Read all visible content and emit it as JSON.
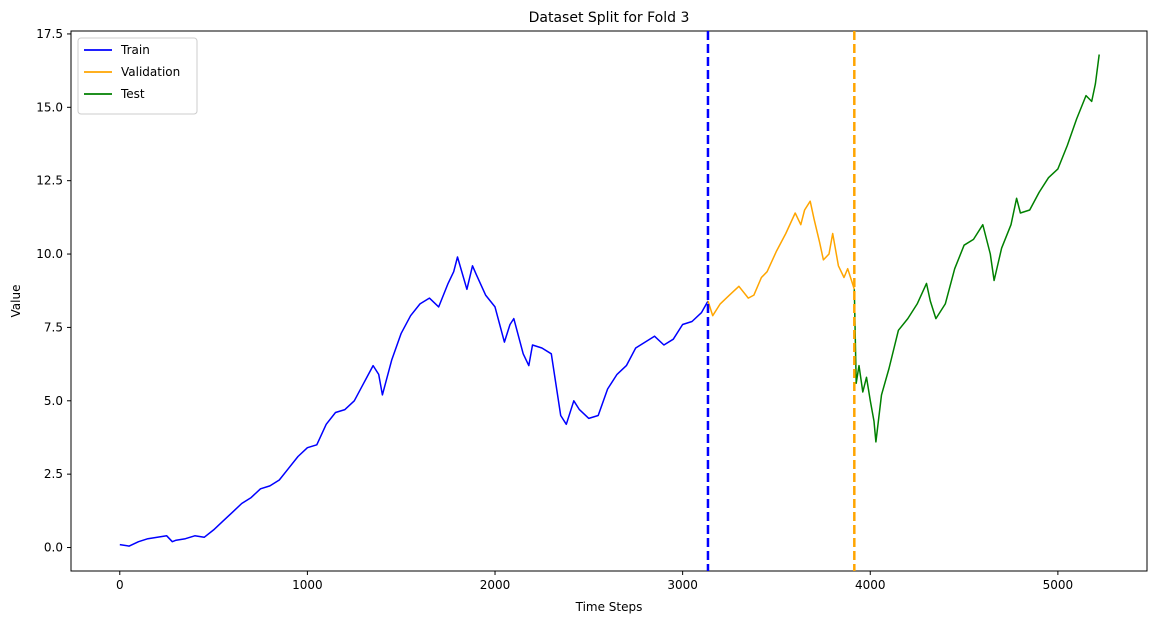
{
  "chart_data": {
    "type": "line",
    "title": "Dataset Split for Fold 3",
    "xlabel": "Time Steps",
    "ylabel": "Value",
    "xlim": [
      -260,
      5475
    ],
    "ylim": [
      -0.8,
      17.6
    ],
    "xticks": [
      0,
      1000,
      2000,
      3000,
      4000,
      5000
    ],
    "yticks": [
      0.0,
      2.5,
      5.0,
      7.5,
      10.0,
      12.5,
      15.0,
      17.5
    ],
    "xtick_labels": [
      "0",
      "1000",
      "2000",
      "3000",
      "4000",
      "5000"
    ],
    "ytick_labels": [
      "0.0",
      "2.5",
      "5.0",
      "7.5",
      "10.0",
      "12.5",
      "15.0",
      "17.5"
    ],
    "grid": false,
    "legend_position": "upper-left",
    "series": [
      {
        "name": "Train",
        "color": "#0000ff",
        "x": [
          0,
          50,
          100,
          150,
          200,
          250,
          280,
          300,
          350,
          400,
          450,
          500,
          550,
          600,
          650,
          700,
          750,
          800,
          850,
          900,
          950,
          1000,
          1050,
          1100,
          1150,
          1200,
          1250,
          1300,
          1350,
          1380,
          1400,
          1450,
          1500,
          1550,
          1600,
          1650,
          1700,
          1750,
          1780,
          1800,
          1850,
          1880,
          1900,
          1950,
          2000,
          2050,
          2080,
          2100,
          2150,
          2180,
          2200,
          2250,
          2300,
          2350,
          2380,
          2420,
          2450,
          2500,
          2550,
          2600,
          2650,
          2700,
          2750,
          2800,
          2850,
          2900,
          2950,
          3000,
          3050,
          3100,
          3135
        ],
        "y": [
          0.1,
          0.05,
          0.2,
          0.3,
          0.35,
          0.4,
          0.2,
          0.25,
          0.3,
          0.4,
          0.35,
          0.6,
          0.9,
          1.2,
          1.5,
          1.7,
          2.0,
          2.1,
          2.3,
          2.7,
          3.1,
          3.4,
          3.5,
          4.2,
          4.6,
          4.7,
          5.0,
          5.6,
          6.2,
          5.9,
          5.2,
          6.4,
          7.3,
          7.9,
          8.3,
          8.5,
          8.2,
          9.0,
          9.4,
          9.9,
          8.8,
          9.6,
          9.3,
          8.6,
          8.2,
          7.0,
          7.6,
          7.8,
          6.6,
          6.2,
          6.9,
          6.8,
          6.6,
          4.5,
          4.2,
          5.0,
          4.7,
          4.4,
          4.5,
          5.4,
          5.9,
          6.2,
          6.8,
          7.0,
          7.2,
          6.9,
          7.1,
          7.6,
          7.7,
          8.0,
          8.4
        ]
      },
      {
        "name": "Validation",
        "color": "#ffa500",
        "x": [
          3135,
          3160,
          3200,
          3250,
          3300,
          3350,
          3380,
          3420,
          3450,
          3500,
          3550,
          3600,
          3630,
          3650,
          3680,
          3700,
          3730,
          3750,
          3780,
          3800,
          3830,
          3860,
          3880,
          3900,
          3915
        ],
        "y": [
          8.4,
          7.9,
          8.3,
          8.6,
          8.9,
          8.5,
          8.6,
          9.2,
          9.4,
          10.1,
          10.7,
          11.4,
          11.0,
          11.5,
          11.8,
          11.2,
          10.4,
          9.8,
          10.0,
          10.7,
          9.6,
          9.2,
          9.5,
          9.1,
          8.8
        ]
      },
      {
        "name": "Test",
        "color": "#008000",
        "x": [
          3915,
          3925,
          3940,
          3960,
          3980,
          4000,
          4020,
          4030,
          4060,
          4100,
          4150,
          4200,
          4250,
          4300,
          4320,
          4350,
          4400,
          4450,
          4500,
          4550,
          4600,
          4640,
          4660,
          4700,
          4750,
          4780,
          4800,
          4850,
          4900,
          4950,
          5000,
          5050,
          5100,
          5150,
          5180,
          5200,
          5220
        ],
        "y": [
          8.8,
          5.6,
          6.2,
          5.3,
          5.8,
          5.0,
          4.3,
          3.6,
          5.2,
          6.1,
          7.4,
          7.8,
          8.3,
          9.0,
          8.4,
          7.8,
          8.3,
          9.5,
          10.3,
          10.5,
          11.0,
          10.0,
          9.1,
          10.2,
          11.0,
          11.9,
          11.4,
          11.5,
          12.1,
          12.6,
          12.9,
          13.7,
          14.6,
          15.4,
          15.2,
          15.8,
          16.8
        ]
      }
    ],
    "vlines": [
      {
        "x": 3135,
        "color": "#0000ff",
        "style": "dashed"
      },
      {
        "x": 3915,
        "color": "#ffa500",
        "style": "dashed"
      }
    ]
  }
}
